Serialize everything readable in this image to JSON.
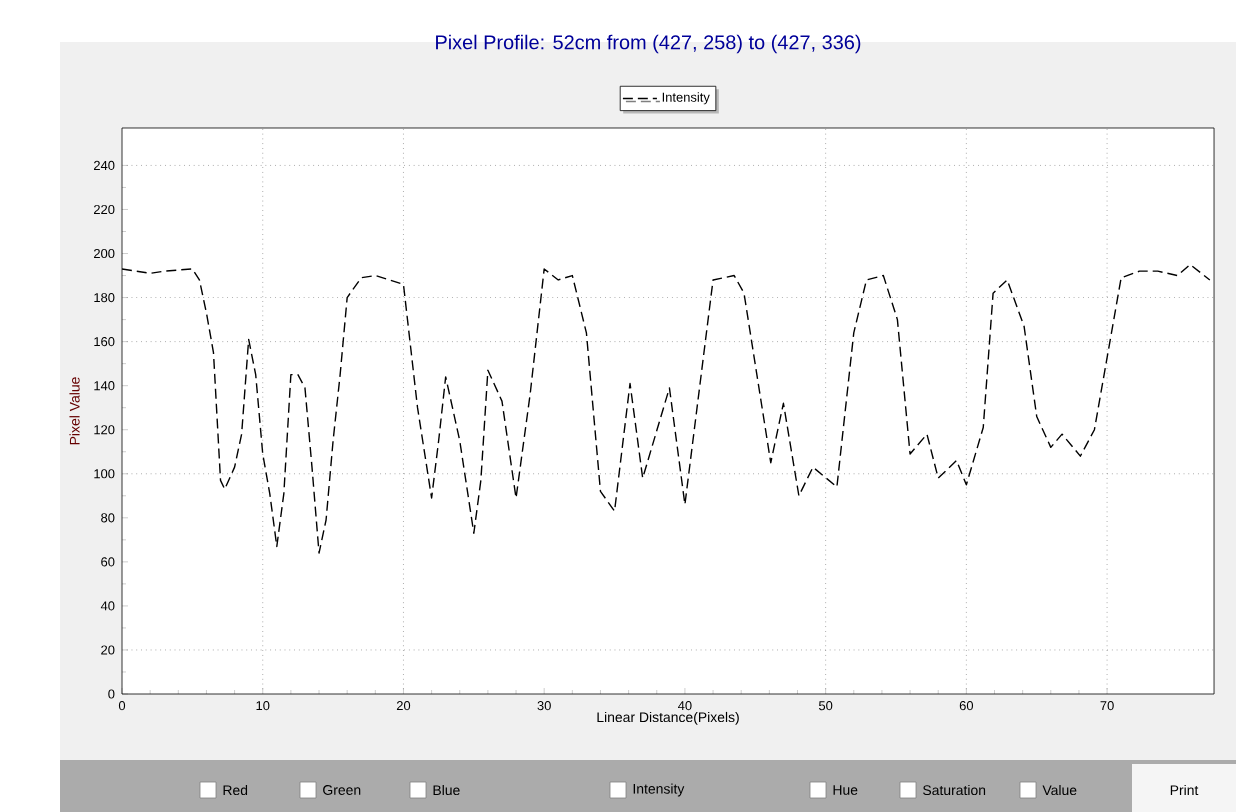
{
  "chart_data": {
    "type": "line",
    "title": "Pixel Profile:   52cm   from (427, 258) to (427, 336)",
    "xlabel": "Linear Distance(Pixels)",
    "ylabel": "Pixel Value",
    "xlim": [
      0,
      77.6
    ],
    "ylim": [
      0,
      257
    ],
    "xticks": [
      0,
      10,
      20,
      30,
      40,
      50,
      60,
      70
    ],
    "yticks": [
      0,
      20,
      40,
      60,
      80,
      100,
      120,
      140,
      160,
      180,
      200,
      220,
      240
    ],
    "legend": "top",
    "line_style": "dashed",
    "marker": "none",
    "ref_lines": [
      {
        "axis": "y",
        "value": 20,
        "color": "#808080",
        "line_style": "dotted"
      },
      {
        "axis": "y",
        "value": 100,
        "color": "#808080",
        "line_style": "dotted"
      },
      {
        "axis": "y",
        "value": 160,
        "color": "#808080",
        "line_style": "dotted"
      },
      {
        "axis": "y",
        "value": 180,
        "color": "#808080",
        "line_style": "dotted"
      },
      {
        "axis": "y",
        "value": 240,
        "color": "#808080",
        "line_style": "dotted"
      },
      {
        "axis": "x",
        "value": 10,
        "color": "#808080",
        "line_style": "dotted"
      },
      {
        "axis": "x",
        "value": 20,
        "color": "#808080",
        "line_style": "dotted"
      },
      {
        "axis": "x",
        "value": 50,
        "color": "#808080",
        "line_style": "dotted"
      },
      {
        "axis": "x",
        "value": 60,
        "color": "#808080",
        "line_style": "dotted"
      },
      {
        "axis": "x",
        "value": 70,
        "color": "#808080",
        "line_style": "dotted"
      }
    ],
    "annotations": [
      "Red",
      "Green",
      "Blue",
      "Intensity",
      "Hue",
      "Saturation",
      "Value",
      "Print"
    ],
    "series": [
      {
        "name": "Intensity",
        "color": "#000000",
        "x": [
          0,
          2,
          3,
          5,
          5.5,
          6,
          6.5,
          7,
          7.3,
          8,
          8.5,
          9,
          9.5,
          10,
          10.5,
          11,
          11.5,
          12,
          12.5,
          13,
          13.5,
          14,
          14.5,
          15,
          15.5,
          16,
          17,
          18,
          19,
          20,
          20.5,
          21,
          22,
          22.5,
          23,
          24,
          25,
          25.5,
          26,
          27,
          28,
          29,
          30,
          31,
          32,
          33,
          34,
          35,
          36.1,
          37.0,
          38.9,
          40,
          42.0,
          43.5,
          44.2,
          46.1,
          47.0,
          48.1,
          49.1,
          50.8,
          52.0,
          52.9,
          54.1,
          55.1,
          56.0,
          57.2,
          58.0,
          59.3,
          60.0,
          61.2,
          61.9,
          62.9,
          64.1,
          65.0,
          66.0,
          66.8,
          68.1,
          69.1,
          71.0,
          72.3,
          73.6,
          75.0,
          75.9,
          77.3
        ],
        "values": [
          193,
          191,
          192,
          193,
          188,
          173,
          155,
          97,
          93,
          103,
          118,
          161,
          145,
          109,
          91,
          67,
          91,
          145,
          145,
          139,
          103,
          64,
          79,
          115,
          145,
          180,
          189,
          190,
          188,
          186,
          158,
          130,
          89,
          115,
          144,
          115,
          73,
          97,
          147,
          133,
          89,
          136,
          193,
          188,
          190,
          164,
          92,
          83,
          141,
          98,
          139,
          86,
          188,
          190,
          182,
          105,
          132,
          90,
          103,
          94,
          164,
          188,
          190,
          170,
          109,
          118,
          98,
          106,
          95,
          121,
          182,
          188,
          167,
          126,
          112,
          118,
          108,
          120,
          189,
          192,
          192,
          190,
          195,
          188
        ]
      }
    ]
  }
}
